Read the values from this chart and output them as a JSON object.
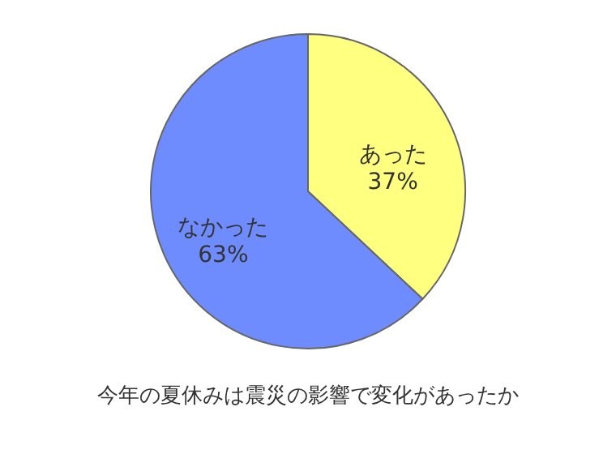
{
  "chart_data": {
    "type": "pie",
    "title": "今年の夏休みは震災の影響で変化があったか",
    "categories": [
      "あった",
      "なかった"
    ],
    "values": [
      37,
      63
    ],
    "value_labels": [
      "37%",
      "63%"
    ],
    "colors": [
      "#ffff80",
      "#6f8cff"
    ]
  }
}
